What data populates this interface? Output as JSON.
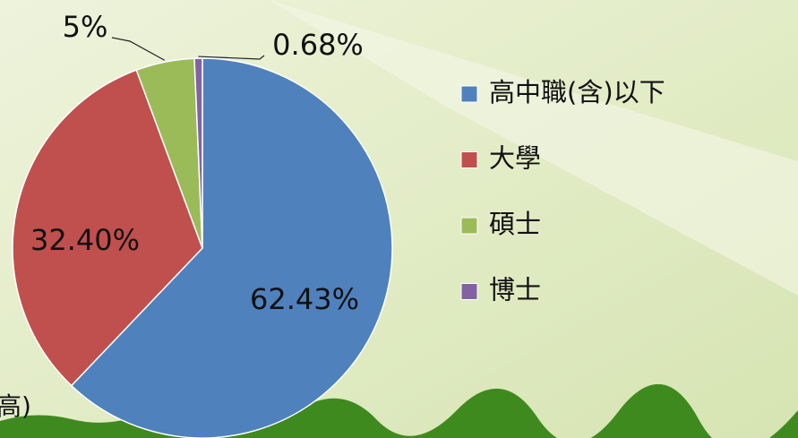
{
  "chart_data": {
    "type": "pie",
    "categories": [
      "高中職(含)以下",
      "大學",
      "碩士",
      "博士"
    ],
    "values": [
      62.43,
      32.4,
      5,
      0.68
    ],
    "value_labels": [
      "62.43%",
      "32.40%",
      "5%",
      "0.68%"
    ],
    "colors": [
      "#4f81bd",
      "#c0504d",
      "#9bbb59",
      "#8064a2"
    ],
    "legend": "right",
    "footnote": "高)"
  }
}
